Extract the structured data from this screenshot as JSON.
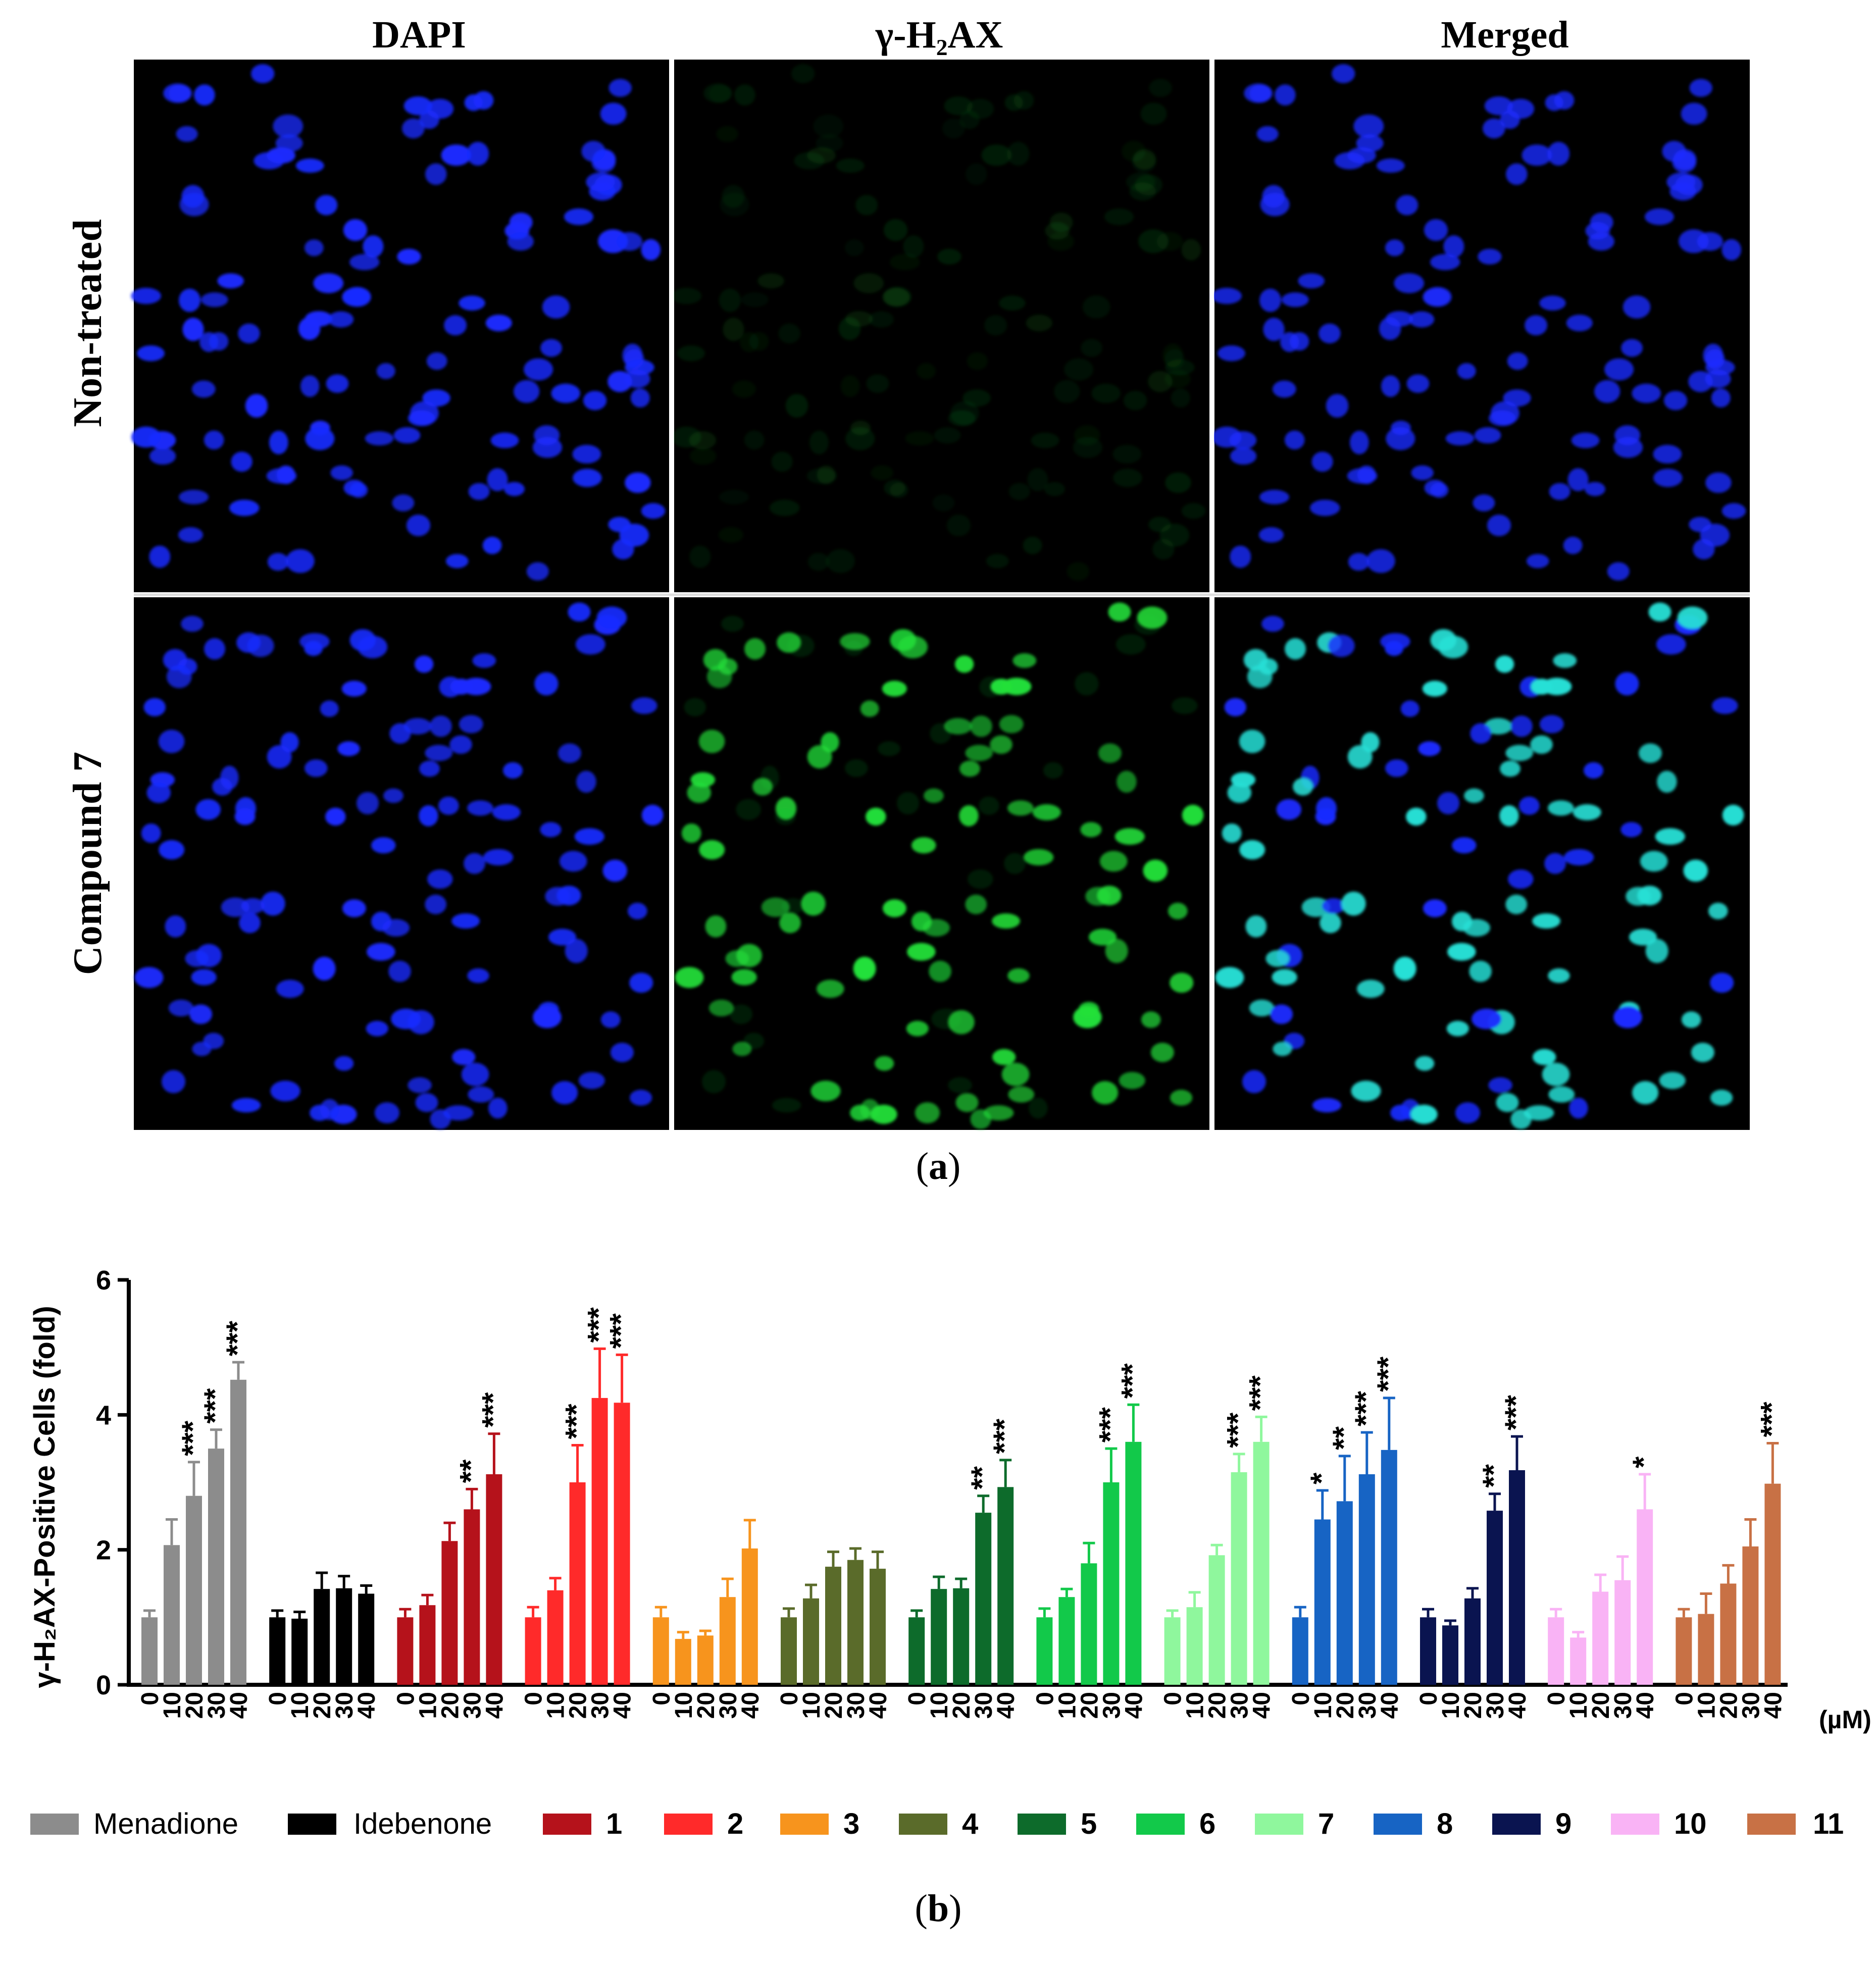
{
  "panel_a": {
    "column_titles": [
      "DAPI",
      "γ-H₂AX",
      "Merged"
    ],
    "row_labels": [
      "Non-treated",
      "Compound 7"
    ],
    "caption_open": "(",
    "caption_letter": "a",
    "caption_close": ")",
    "colors": {
      "dapi": "#1a2bff",
      "gh2ax": "#22e03a",
      "merged": "#27e0d6",
      "background": "#000000"
    }
  },
  "panel_b": {
    "caption_open": "(",
    "caption_letter": "b",
    "caption_close": ")"
  },
  "chart_data": {
    "type": "bar",
    "ylabel": "γ-H₂AX-Positive Cells (fold)",
    "x_unit": "(µM)",
    "ylim": [
      0,
      6
    ],
    "yticks": [
      0,
      2,
      4,
      6
    ],
    "doses": [
      "0",
      "10",
      "20",
      "30",
      "40"
    ],
    "legend_position": "bottom",
    "series": [
      {
        "name": "Menadione",
        "color": "#8c8c8c",
        "values": [
          1.0,
          2.07,
          2.8,
          3.5,
          4.52
        ],
        "errors": [
          0.1,
          0.38,
          0.5,
          0.28,
          0.26
        ],
        "sig": [
          "",
          "",
          "***",
          "***",
          "***"
        ]
      },
      {
        "name": "Idebenone",
        "color": "#000000",
        "values": [
          1.0,
          0.98,
          1.42,
          1.43,
          1.35
        ],
        "errors": [
          0.1,
          0.1,
          0.24,
          0.18,
          0.12
        ],
        "sig": [
          "",
          "",
          "",
          "",
          ""
        ]
      },
      {
        "name": "1",
        "color": "#b5121b",
        "values": [
          1.0,
          1.18,
          2.13,
          2.6,
          3.12
        ],
        "errors": [
          0.12,
          0.15,
          0.27,
          0.3,
          0.6
        ],
        "sig": [
          "",
          "",
          "",
          "**",
          "***"
        ]
      },
      {
        "name": "2",
        "color": "#ff2a2a",
        "values": [
          1.0,
          1.4,
          3.0,
          4.25,
          4.18
        ],
        "errors": [
          0.15,
          0.18,
          0.55,
          0.73,
          0.71
        ],
        "sig": [
          "",
          "",
          "***",
          "***",
          "***"
        ]
      },
      {
        "name": "3",
        "color": "#f7941d",
        "values": [
          1.0,
          0.68,
          0.73,
          1.3,
          2.02
        ],
        "errors": [
          0.15,
          0.1,
          0.07,
          0.27,
          0.42
        ],
        "sig": [
          "",
          "",
          "",
          "",
          ""
        ]
      },
      {
        "name": "4",
        "color": "#5a6b2a",
        "values": [
          1.0,
          1.28,
          1.75,
          1.85,
          1.72
        ],
        "errors": [
          0.13,
          0.2,
          0.22,
          0.17,
          0.25
        ],
        "sig": [
          "",
          "",
          "",
          "",
          ""
        ]
      },
      {
        "name": "5",
        "color": "#0d6b2b",
        "values": [
          1.0,
          1.42,
          1.43,
          2.55,
          2.93
        ],
        "errors": [
          0.1,
          0.18,
          0.14,
          0.25,
          0.4
        ],
        "sig": [
          "",
          "",
          "",
          "**",
          "***"
        ]
      },
      {
        "name": "6",
        "color": "#12c94a",
        "values": [
          1.0,
          1.3,
          1.8,
          3.0,
          3.6
        ],
        "errors": [
          0.13,
          0.12,
          0.3,
          0.5,
          0.55
        ],
        "sig": [
          "",
          "",
          "",
          "***",
          "***"
        ]
      },
      {
        "name": "7",
        "color": "#8ff79d",
        "values": [
          1.0,
          1.15,
          1.92,
          3.15,
          3.6
        ],
        "errors": [
          0.1,
          0.22,
          0.15,
          0.27,
          0.37
        ],
        "sig": [
          "",
          "",
          "",
          "***",
          "***"
        ]
      },
      {
        "name": "8",
        "color": "#1764c4",
        "values": [
          1.0,
          2.45,
          2.72,
          3.12,
          3.48
        ],
        "errors": [
          0.15,
          0.43,
          0.67,
          0.62,
          0.77
        ],
        "sig": [
          "",
          "*",
          "**",
          "***",
          "***"
        ]
      },
      {
        "name": "9",
        "color": "#0a1450",
        "values": [
          1.0,
          0.88,
          1.28,
          2.58,
          3.18
        ],
        "errors": [
          0.12,
          0.07,
          0.15,
          0.25,
          0.5
        ],
        "sig": [
          "",
          "",
          "",
          "**",
          "***"
        ]
      },
      {
        "name": "10",
        "color": "#f9b3f5",
        "values": [
          1.0,
          0.7,
          1.38,
          1.55,
          2.6
        ],
        "errors": [
          0.12,
          0.08,
          0.25,
          0.35,
          0.52
        ],
        "sig": [
          "",
          "",
          "",
          "",
          "*"
        ]
      },
      {
        "name": "11",
        "color": "#c87145",
        "values": [
          1.0,
          1.05,
          1.5,
          2.05,
          2.98
        ],
        "errors": [
          0.12,
          0.3,
          0.27,
          0.4,
          0.6
        ],
        "sig": [
          "",
          "",
          "",
          "",
          "***"
        ]
      }
    ]
  }
}
